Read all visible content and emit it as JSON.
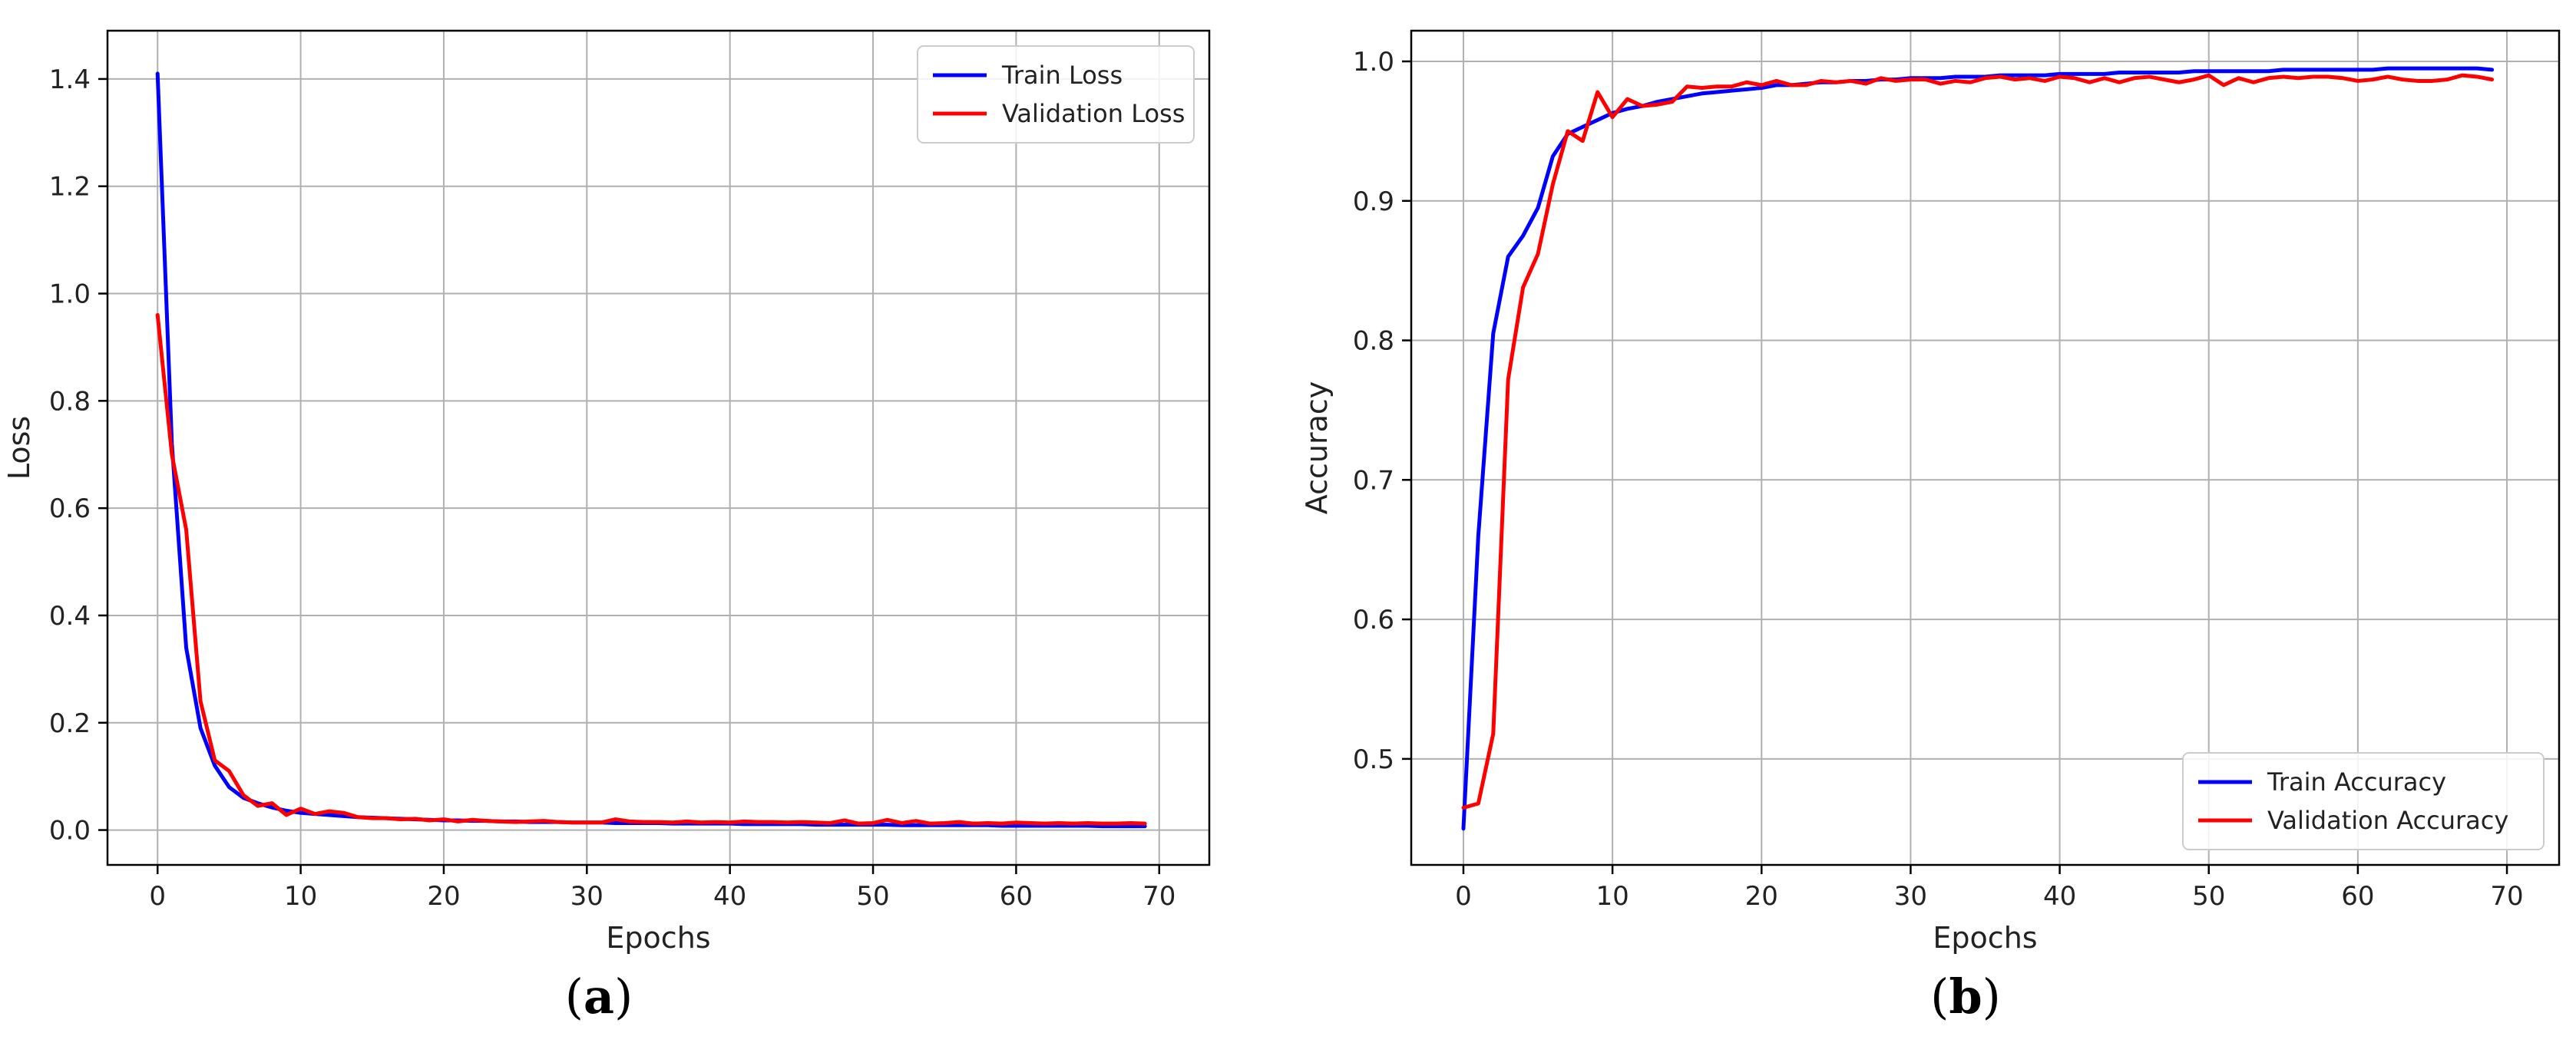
{
  "chart_data": [
    {
      "type": "line",
      "panel_label": "a",
      "xlabel": "Epochs",
      "ylabel": "Loss",
      "xlim": [
        -3.5,
        73.5
      ],
      "ylim": [
        -0.065,
        1.49
      ],
      "xticks": [
        0,
        10,
        20,
        30,
        40,
        50,
        60,
        70
      ],
      "yticks": [
        0.0,
        0.2,
        0.4,
        0.6,
        0.8,
        1.0,
        1.2,
        1.4
      ],
      "ytick_labels": [
        "0.0",
        "0.2",
        "0.4",
        "0.6",
        "0.8",
        "1.0",
        "1.2",
        "1.4"
      ],
      "grid": true,
      "legend": "top-right",
      "series": [
        {
          "name": "Train Loss",
          "color": "#0000ff",
          "values": [
            1.41,
            0.72,
            0.34,
            0.19,
            0.12,
            0.08,
            0.06,
            0.05,
            0.042,
            0.036,
            0.032,
            0.03,
            0.028,
            0.026,
            0.024,
            0.023,
            0.022,
            0.021,
            0.02,
            0.019,
            0.018,
            0.018,
            0.017,
            0.017,
            0.016,
            0.016,
            0.015,
            0.015,
            0.015,
            0.014,
            0.014,
            0.014,
            0.013,
            0.013,
            0.013,
            0.013,
            0.012,
            0.012,
            0.012,
            0.012,
            0.012,
            0.011,
            0.011,
            0.011,
            0.011,
            0.011,
            0.01,
            0.01,
            0.01,
            0.01,
            0.01,
            0.01,
            0.009,
            0.009,
            0.009,
            0.009,
            0.009,
            0.009,
            0.009,
            0.008,
            0.008,
            0.008,
            0.008,
            0.008,
            0.008,
            0.008,
            0.007,
            0.007,
            0.007,
            0.007
          ]
        },
        {
          "name": "Validation Loss",
          "color": "#ff0000",
          "values": [
            0.96,
            0.7,
            0.56,
            0.24,
            0.13,
            0.11,
            0.065,
            0.045,
            0.05,
            0.028,
            0.04,
            0.03,
            0.035,
            0.032,
            0.024,
            0.022,
            0.022,
            0.02,
            0.021,
            0.018,
            0.02,
            0.016,
            0.019,
            0.017,
            0.016,
            0.015,
            0.016,
            0.017,
            0.015,
            0.014,
            0.014,
            0.014,
            0.02,
            0.016,
            0.015,
            0.015,
            0.014,
            0.016,
            0.014,
            0.015,
            0.014,
            0.016,
            0.015,
            0.015,
            0.014,
            0.015,
            0.014,
            0.013,
            0.018,
            0.012,
            0.013,
            0.019,
            0.013,
            0.017,
            0.012,
            0.013,
            0.015,
            0.012,
            0.013,
            0.012,
            0.014,
            0.013,
            0.012,
            0.013,
            0.012,
            0.013,
            0.012,
            0.012,
            0.013,
            0.012
          ]
        }
      ]
    },
    {
      "type": "line",
      "panel_label": "b",
      "xlabel": "Epochs",
      "ylabel": "Accuracy",
      "xlim": [
        -3.5,
        73.5
      ],
      "ylim": [
        0.424,
        1.022
      ],
      "xticks": [
        0,
        10,
        20,
        30,
        40,
        50,
        60,
        70
      ],
      "yticks": [
        0.5,
        0.6,
        0.7,
        0.8,
        0.9,
        1.0
      ],
      "ytick_labels": [
        "0.5",
        "0.6",
        "0.7",
        "0.8",
        "0.9",
        "1.0"
      ],
      "grid": true,
      "legend": "bottom-right",
      "series": [
        {
          "name": "Train Accuracy",
          "color": "#0000ff",
          "values": [
            0.45,
            0.66,
            0.805,
            0.86,
            0.875,
            0.895,
            0.932,
            0.948,
            0.953,
            0.958,
            0.963,
            0.966,
            0.968,
            0.971,
            0.973,
            0.975,
            0.977,
            0.978,
            0.979,
            0.98,
            0.981,
            0.983,
            0.983,
            0.984,
            0.985,
            0.985,
            0.986,
            0.986,
            0.987,
            0.987,
            0.988,
            0.988,
            0.988,
            0.989,
            0.989,
            0.989,
            0.99,
            0.99,
            0.99,
            0.99,
            0.991,
            0.991,
            0.991,
            0.991,
            0.992,
            0.992,
            0.992,
            0.992,
            0.992,
            0.993,
            0.993,
            0.993,
            0.993,
            0.993,
            0.993,
            0.994,
            0.994,
            0.994,
            0.994,
            0.994,
            0.994,
            0.994,
            0.995,
            0.995,
            0.995,
            0.995,
            0.995,
            0.995,
            0.995,
            0.994
          ]
        },
        {
          "name": "Validation Accuracy",
          "color": "#ff0000",
          "values": [
            0.465,
            0.468,
            0.518,
            0.772,
            0.838,
            0.862,
            0.912,
            0.95,
            0.943,
            0.978,
            0.96,
            0.973,
            0.968,
            0.969,
            0.971,
            0.982,
            0.981,
            0.982,
            0.982,
            0.985,
            0.983,
            0.986,
            0.983,
            0.983,
            0.986,
            0.985,
            0.986,
            0.984,
            0.988,
            0.986,
            0.987,
            0.987,
            0.984,
            0.986,
            0.985,
            0.988,
            0.989,
            0.987,
            0.988,
            0.986,
            0.989,
            0.988,
            0.985,
            0.988,
            0.985,
            0.988,
            0.989,
            0.987,
            0.985,
            0.987,
            0.99,
            0.983,
            0.988,
            0.985,
            0.988,
            0.989,
            0.988,
            0.989,
            0.989,
            0.988,
            0.986,
            0.987,
            0.989,
            0.987,
            0.986,
            0.986,
            0.987,
            0.99,
            0.989,
            0.987
          ]
        }
      ]
    }
  ]
}
